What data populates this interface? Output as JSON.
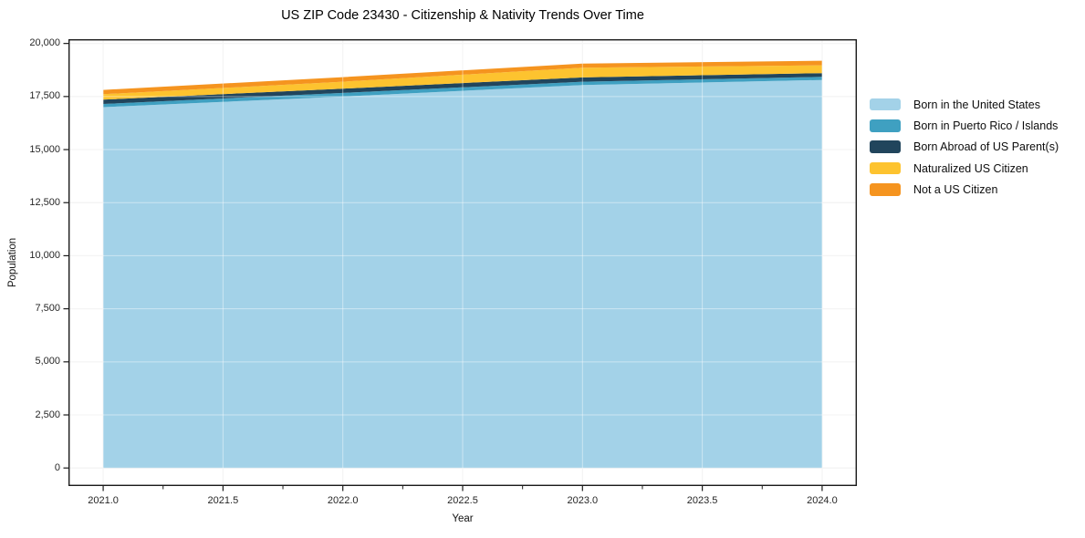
{
  "chart_data": {
    "type": "area",
    "stacked": true,
    "title": "US ZIP Code 23430 - Citizenship & Nativity Trends Over Time",
    "xlabel": "Year",
    "ylabel": "Population",
    "x": [
      2021,
      2022,
      2023,
      2024
    ],
    "series": [
      {
        "name": "Born in the United States",
        "color": "#A3D2E8",
        "values": [
          17000,
          17500,
          18040,
          18280
        ]
      },
      {
        "name": "Born in Puerto Rico / Islands",
        "color": "#3FA0C1",
        "values": [
          150,
          170,
          160,
          145
        ]
      },
      {
        "name": "Born Abroad of US Parent(s)",
        "color": "#21455C",
        "values": [
          200,
          200,
          200,
          175
        ]
      },
      {
        "name": "Naturalized US Citizen",
        "color": "#FDC32F",
        "values": [
          260,
          330,
          460,
          370
        ]
      },
      {
        "name": "Not a US Citizen",
        "color": "#F5941F",
        "values": [
          200,
          215,
          195,
          215
        ]
      }
    ],
    "xlim": [
      2020.855,
      2024.145
    ],
    "ylim": [
      -850,
      20200
    ],
    "xticks": {
      "values": [
        2021.0,
        2021.5,
        2022.0,
        2022.5,
        2023.0,
        2023.5,
        2024.0
      ],
      "labels": [
        "2021.0",
        "2021.5",
        "2022.0",
        "2022.5",
        "2023.0",
        "2023.5",
        "2024.0"
      ]
    },
    "minor_xticks": [
      2021.25,
      2021.75,
      2022.25,
      2022.75,
      2023.25,
      2023.75
    ],
    "yticks": {
      "values": [
        0,
        2500,
        5000,
        7500,
        10000,
        12500,
        15000,
        17500,
        20000
      ],
      "labels": [
        "0",
        "2,500",
        "5,000",
        "7,500",
        "10,000",
        "12,500",
        "15,000",
        "17,500",
        "20,000"
      ]
    },
    "grid": true,
    "legend_position": "right",
    "colors": {
      "grid": "#e9e9e9",
      "grid_over_fill": "rgba(255,255,255,0.45)",
      "spine": "#1a1a1a",
      "tick": "#1a1a1a",
      "background": "#ffffff"
    }
  }
}
